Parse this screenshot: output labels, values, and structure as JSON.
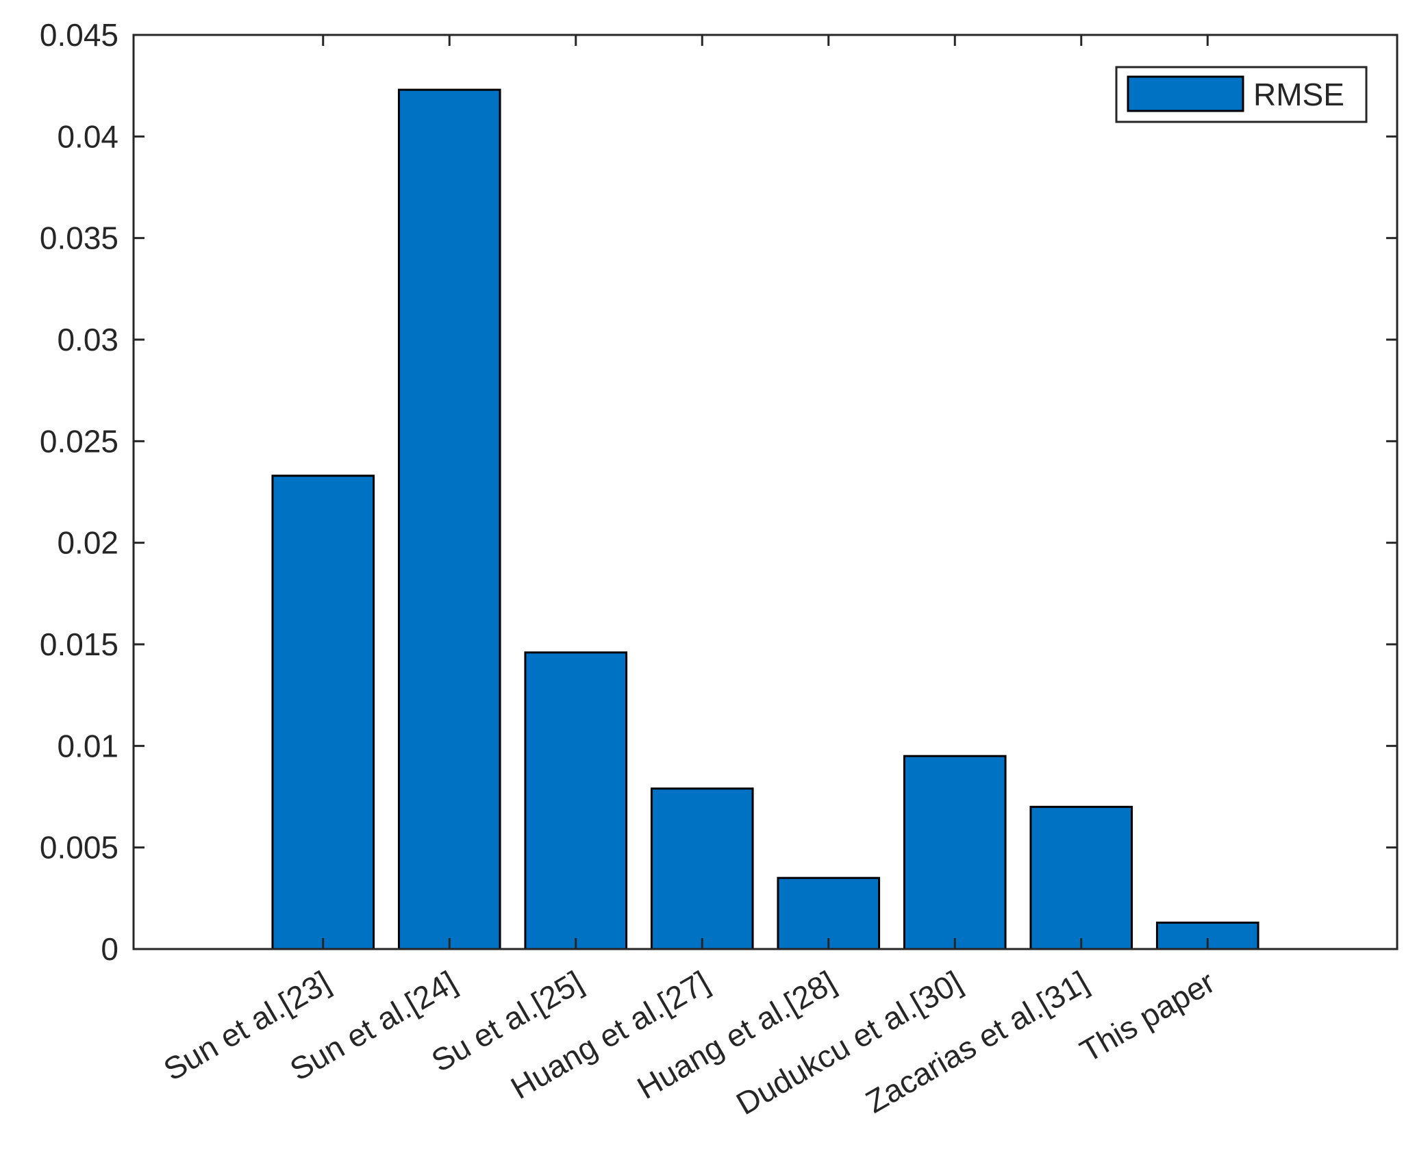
{
  "chart_data": {
    "type": "bar",
    "title": "",
    "xlabel": "",
    "ylabel": "",
    "categories": [
      "Sun et al.[23]",
      "Sun et al.[24]",
      "Su et al.[25]",
      "Huang et al.[27]",
      "Huang et al.[28]",
      "Dudukcu et al.[30]",
      "Zacarias et al.[31]",
      "This paper"
    ],
    "series": [
      {
        "name": "RMSE",
        "values": [
          0.0233,
          0.0423,
          0.0146,
          0.0079,
          0.0035,
          0.0095,
          0.007,
          0.0013
        ]
      }
    ],
    "ylim": [
      0,
      0.045
    ],
    "yticks": [
      "0",
      "0.005",
      "0.01",
      "0.015",
      "0.02",
      "0.025",
      "0.03",
      "0.035",
      "0.04",
      "0.045"
    ],
    "grid": false,
    "legend_position": "top-right",
    "colors": {
      "bar": "#0072C4",
      "edge": "#000000",
      "axis": "#262626"
    }
  }
}
